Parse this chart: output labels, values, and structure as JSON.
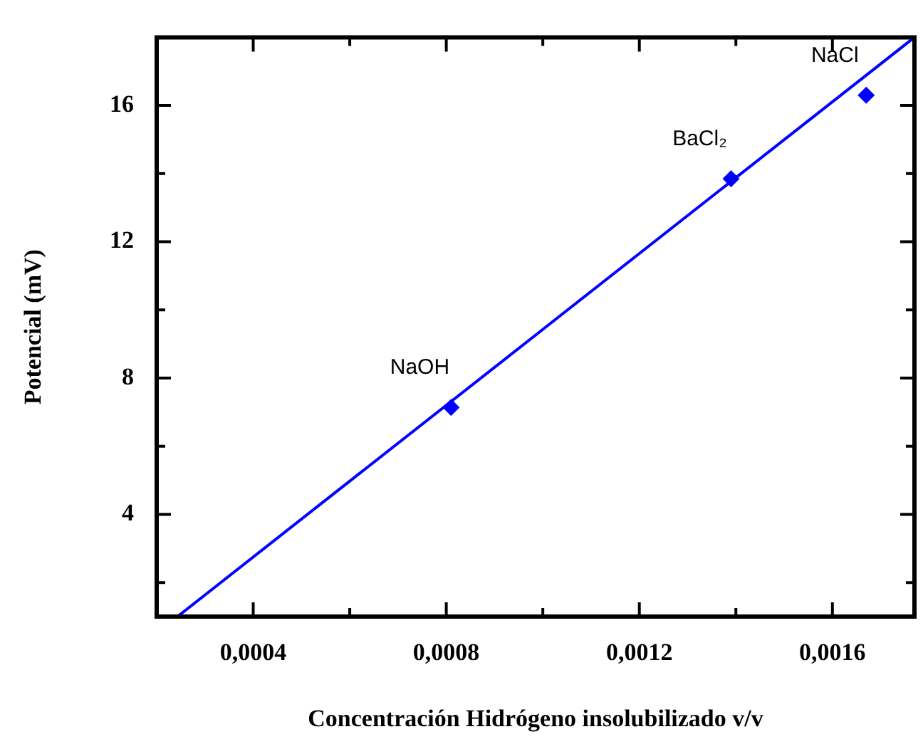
{
  "chart_data": {
    "type": "scatter",
    "xlabel": "Concentración Hidrógeno insolubilizado v/v",
    "ylabel": "Potencial (mV)",
    "xlim": [
      0.0002,
      0.00177
    ],
    "ylim": [
      1,
      18
    ],
    "xticks": [
      {
        "value": 0.0004,
        "label": "0,0004"
      },
      {
        "value": 0.0006,
        "label": null
      },
      {
        "value": 0.0008,
        "label": "0,0008"
      },
      {
        "value": 0.001,
        "label": null
      },
      {
        "value": 0.0012,
        "label": "0,0012"
      },
      {
        "value": 0.0014,
        "label": null
      },
      {
        "value": 0.0016,
        "label": "0,0016"
      }
    ],
    "yticks": [
      {
        "value": 2,
        "label": null
      },
      4,
      {
        "value": 6,
        "label": null
      },
      8,
      {
        "value": 10,
        "label": null
      },
      12,
      {
        "value": 14,
        "label": null
      },
      16
    ],
    "series": [
      {
        "type": "scatter",
        "color": "#0000ff",
        "marker": "diamond",
        "x": [
          0.00081,
          0.00139,
          0.00167
        ],
        "values": [
          7.14,
          13.85,
          16.3
        ]
      },
      {
        "type": "line",
        "color": "#0000ff",
        "marker": "none",
        "line_style": "solid",
        "x": [
          0.000243,
          0.00177
        ],
        "values": [
          1,
          18
        ]
      }
    ],
    "annotations": [
      {
        "text": "NaOH",
        "x": 0.00081,
        "y": 7.14
      },
      {
        "text": "BaCl₂",
        "x": 0.00139,
        "y": 13.85
      },
      {
        "text": "NaCl",
        "x": 0.00167,
        "y": 16.3
      }
    ]
  }
}
